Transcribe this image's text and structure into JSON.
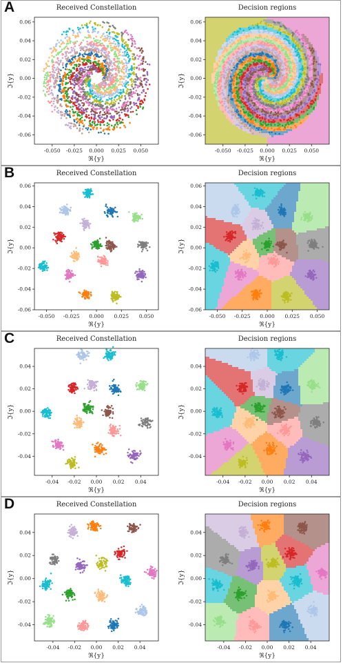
{
  "colors": [
    "#1f77b4",
    "#ff7f0e",
    "#2ca02c",
    "#d62728",
    "#9467bd",
    "#8c564b",
    "#e377c2",
    "#7f7f7f",
    "#bcbd22",
    "#17becf",
    "#aec7e8",
    "#ffbb78",
    "#98df8a",
    "#ff9896",
    "#c5b0d5",
    "#c49c94"
  ],
  "chart_data": [
    {
      "panel": "A",
      "type": "scatter",
      "left_title": "Received Constellation",
      "right_title": "Decision regions",
      "xlabel": "ℜ{y}",
      "ylabel": "ℑ{y}",
      "xlim": [
        -0.07,
        0.07
      ],
      "ylim": [
        -0.07,
        0.065
      ],
      "xticks": [
        "-0.050",
        "-0.025",
        "0.000",
        "0.025",
        "0.050"
      ],
      "xtick_values": [
        -0.05,
        -0.025,
        0,
        0.025,
        0.05
      ],
      "yticks": [
        "0.06",
        "0.04",
        "0.02",
        "0.00",
        "-0.02",
        "-0.04",
        "-0.06"
      ],
      "ytick_values": [
        0.06,
        0.04,
        0.02,
        0,
        -0.02,
        -0.04,
        -0.06
      ],
      "layout": "spiral",
      "note": "Each of 16 symbols forms a spiral arm"
    },
    {
      "panel": "B",
      "type": "scatter",
      "left_title": "Received Constellation",
      "right_title": "Decision regions",
      "xlabel": "ℜ{y}",
      "ylabel": "ℑ{y}",
      "xlim": [
        -0.062,
        0.062
      ],
      "ylim": [
        -0.06,
        0.063
      ],
      "xticks": [
        "-0.050",
        "-0.025",
        "0.000",
        "0.025",
        "0.050"
      ],
      "xtick_values": [
        -0.05,
        -0.025,
        0,
        0.025,
        0.05
      ],
      "yticks": [
        "0.06",
        "0.04",
        "0.02",
        "0.00",
        "-0.02",
        "-0.04",
        "-0.06"
      ],
      "ytick_values": [
        0.06,
        0.04,
        0.02,
        0,
        -0.02,
        -0.04,
        -0.06
      ],
      "layout": "clusters",
      "clusters": [
        {
          "x": -0.008,
          "y": 0.053,
          "c": 9
        },
        {
          "x": -0.031,
          "y": 0.036,
          "c": 10
        },
        {
          "x": 0.015,
          "y": 0.035,
          "c": 0
        },
        {
          "x": 0.04,
          "y": 0.03,
          "c": 12
        },
        {
          "x": -0.011,
          "y": 0.023,
          "c": 14
        },
        {
          "x": -0.037,
          "y": 0.011,
          "c": 3
        },
        {
          "x": 0.0,
          "y": 0.003,
          "c": 2
        },
        {
          "x": 0.014,
          "y": 0.002,
          "c": 5
        },
        {
          "x": 0.046,
          "y": 0.003,
          "c": 7
        },
        {
          "x": -0.021,
          "y": -0.008,
          "c": 11
        },
        {
          "x": 0.006,
          "y": -0.013,
          "c": 13
        },
        {
          "x": -0.053,
          "y": -0.018,
          "c": 9
        },
        {
          "x": -0.027,
          "y": -0.026,
          "c": 6
        },
        {
          "x": 0.044,
          "y": -0.026,
          "c": 4
        },
        {
          "x": -0.011,
          "y": -0.045,
          "c": 1
        },
        {
          "x": 0.019,
          "y": -0.047,
          "c": 8
        }
      ]
    },
    {
      "panel": "C",
      "type": "scatter",
      "left_title": "Received Constellation",
      "right_title": "Decision regions",
      "xlabel": "ℜ{y}",
      "ylabel": "ℑ{y}",
      "xlim": [
        -0.056,
        0.056
      ],
      "ylim": [
        -0.057,
        0.056
      ],
      "xticks": [
        "-0.04",
        "-0.02",
        "0.00",
        "0.02",
        "0.04"
      ],
      "xtick_values": [
        -0.04,
        -0.02,
        0,
        0.02,
        0.04
      ],
      "yticks": [
        "0.04",
        "0.02",
        "0.00",
        "-0.02",
        "-0.04"
      ],
      "ytick_values": [
        0.04,
        0.02,
        0,
        -0.02,
        -0.04
      ],
      "layout": "clusters",
      "clusters": [
        {
          "x": -0.012,
          "y": 0.05,
          "c": 10
        },
        {
          "x": 0.012,
          "y": 0.05,
          "c": 9
        },
        {
          "x": -0.022,
          "y": 0.021,
          "c": 3
        },
        {
          "x": -0.004,
          "y": 0.024,
          "c": 14
        },
        {
          "x": 0.017,
          "y": 0.02,
          "c": 0
        },
        {
          "x": 0.041,
          "y": 0.023,
          "c": 12
        },
        {
          "x": -0.045,
          "y": -0.001,
          "c": 9
        },
        {
          "x": -0.008,
          "y": 0.003,
          "c": 2
        },
        {
          "x": 0.011,
          "y": -0.001,
          "c": 5
        },
        {
          "x": -0.016,
          "y": -0.01,
          "c": 11
        },
        {
          "x": 0.016,
          "y": -0.017,
          "c": 13
        },
        {
          "x": 0.044,
          "y": -0.01,
          "c": 7
        },
        {
          "x": -0.035,
          "y": -0.03,
          "c": 6
        },
        {
          "x": 0.003,
          "y": -0.034,
          "c": 1
        },
        {
          "x": 0.034,
          "y": -0.04,
          "c": 4
        },
        {
          "x": -0.022,
          "y": -0.046,
          "c": 8
        }
      ]
    },
    {
      "panel": "D",
      "type": "scatter",
      "left_title": "Received Constellation",
      "right_title": "Decision regions",
      "xlabel": "ℜ{y}",
      "ylabel": "ℑ{y}",
      "xlim": [
        -0.057,
        0.057
      ],
      "ylim": [
        -0.054,
        0.056
      ],
      "xticks": [
        "-0.04",
        "-0.02",
        "0.00",
        "0.02",
        "0.04"
      ],
      "xtick_values": [
        -0.04,
        -0.02,
        0,
        0.02,
        0.04
      ],
      "yticks": [
        "0.04",
        "0.02",
        "0.00",
        "-0.02",
        "-0.04"
      ],
      "ytick_values": [
        0.04,
        0.02,
        0,
        -0.02,
        -0.04
      ],
      "layout": "clusters",
      "clusters": [
        {
          "x": -0.022,
          "y": 0.04,
          "c": 14
        },
        {
          "x": -0.002,
          "y": 0.046,
          "c": 1
        },
        {
          "x": 0.033,
          "y": 0.044,
          "c": 5
        },
        {
          "x": -0.039,
          "y": 0.016,
          "c": 7
        },
        {
          "x": -0.014,
          "y": 0.011,
          "c": 4
        },
        {
          "x": 0.005,
          "y": 0.013,
          "c": 8
        },
        {
          "x": 0.022,
          "y": 0.022,
          "c": 3
        },
        {
          "x": 0.051,
          "y": 0.005,
          "c": 6
        },
        {
          "x": -0.046,
          "y": -0.005,
          "c": 9
        },
        {
          "x": -0.025,
          "y": -0.013,
          "c": 2
        },
        {
          "x": 0.004,
          "y": -0.015,
          "c": 11
        },
        {
          "x": 0.027,
          "y": -0.002,
          "c": 9
        },
        {
          "x": -0.044,
          "y": -0.037,
          "c": 12
        },
        {
          "x": -0.012,
          "y": -0.041,
          "c": 13
        },
        {
          "x": 0.016,
          "y": -0.04,
          "c": 0
        },
        {
          "x": 0.042,
          "y": -0.028,
          "c": 10
        }
      ]
    }
  ]
}
